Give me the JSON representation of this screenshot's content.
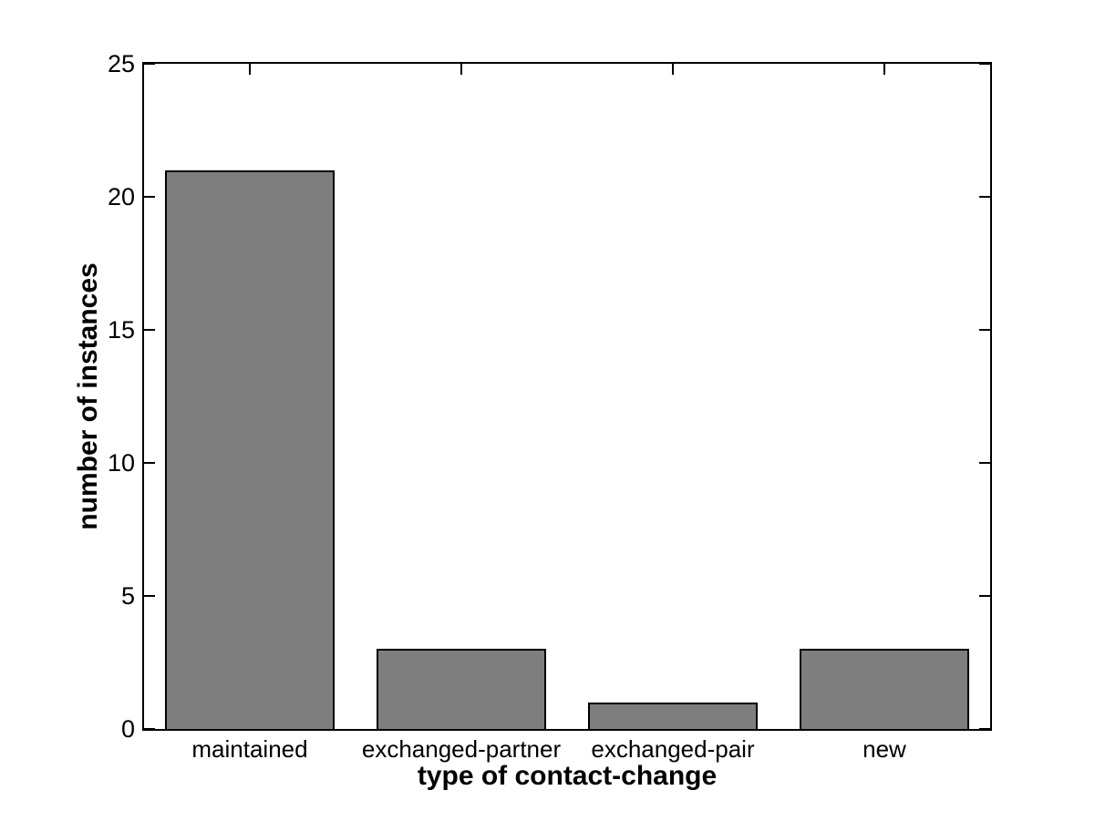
{
  "chart_data": {
    "type": "bar",
    "title": "",
    "xlabel": "type of contact-change",
    "ylabel": "number of instances",
    "categories": [
      "maintained",
      "exchanged-partner",
      "exchanged-pair",
      "new"
    ],
    "values": [
      21,
      3,
      1,
      3
    ],
    "ylim": [
      0,
      25
    ],
    "yticks": [
      0,
      5,
      10,
      15,
      20,
      25
    ],
    "xlim": [
      0.5,
      4.5
    ],
    "x_positions": [
      1,
      2,
      3,
      4
    ],
    "bar_width_fraction": 0.8,
    "bar_color": "#7E7E7E",
    "bar_edge_color": "#000000",
    "axis_color": "#000000",
    "background_color": "#ffffff",
    "grid": false,
    "legend": null,
    "box": true,
    "tick_direction": "in"
  }
}
